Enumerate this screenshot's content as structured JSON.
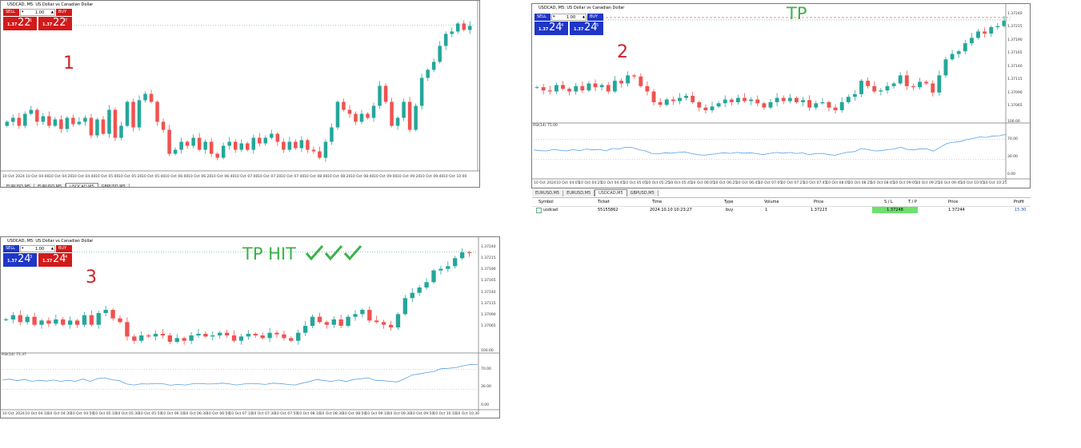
{
  "panels": [
    {
      "title": "USDCAD, M5: US Dollar vs Canadian Dollar",
      "sell_label": "SELL",
      "buy_label": "BUY",
      "lot": "1.00",
      "sell_small": "1.37",
      "sell_big": "22",
      "sell_sup": "1",
      "buy_small": "1.37",
      "buy_big": "22",
      "buy_sup": "7",
      "box_colors": {
        "sell": "#d31a1a",
        "buy": "#d31a1a"
      },
      "annotation": "1",
      "price_labels": [
        "1.37235",
        "1.37220",
        "1.37205",
        "1.37190",
        "1.37175",
        "1.37160",
        "1.37145",
        "1.37130",
        "1.37115",
        "1.37100",
        "1.37085",
        "1.37070",
        "1.37055"
      ],
      "time_labels": [
        "10 Oct 2024",
        "10 Oct 04:00",
        "10 Oct 04:20",
        "10 Oct 04:40",
        "10 Oct 05:00",
        "10 Oct 05:20",
        "10 Oct 05:40",
        "10 Oct 06:00",
        "10 Oct 06:20",
        "10 Oct 06:40",
        "10 Oct 07:00",
        "10 Oct 07:20",
        "10 Oct 07:40",
        "10 Oct 08:00",
        "10 Oct 08:20",
        "10 Oct 08:40",
        "10 Oct 09:00",
        "10 Oct 09:20",
        "10 Oct 09:40",
        "10 Oct 10:00"
      ],
      "tabs": [
        "EURUSD,M5",
        "EURUSD,M5",
        "USDCAD,M5",
        "GBPUSD,M5"
      ]
    },
    {
      "title": "USDCAD, M5: US Dollar vs Canadian Dollar",
      "sell_label": "SELL",
      "buy_label": "BUY",
      "lot": "1.00",
      "sell_small": "1.37",
      "sell_big": "24",
      "sell_sup": "4",
      "buy_small": "1.37",
      "buy_big": "24",
      "buy_sup": "5",
      "box_colors": {
        "sell": "#1f36c7",
        "buy": "#1f36c7"
      },
      "annotation": "2",
      "tp_label": "TP",
      "rsi_label": "RSI(14) 75.00",
      "rsi_levels": [
        "100.00",
        "70.00",
        "30.00",
        "0.00"
      ],
      "price_labels": [
        "1.37240",
        "1.37215",
        "1.37190",
        "1.37165",
        "1.37140",
        "1.37115",
        "1.37090",
        "1.37065"
      ],
      "time_labels": [
        "10 Oct 2024",
        "10 Oct 04:05",
        "10 Oct 04:25",
        "10 Oct 04:45",
        "10 Oct 05:05",
        "10 Oct 05:25",
        "10 Oct 05:45",
        "10 Oct 06:05",
        "10 Oct 06:25",
        "10 Oct 06:45",
        "10 Oct 07:05",
        "10 Oct 07:25",
        "10 Oct 07:45",
        "10 Oct 08:05",
        "10 Oct 08:25",
        "10 Oct 08:45",
        "10 Oct 09:05",
        "10 Oct 09:25",
        "10 Oct 09:45",
        "10 Oct 10:05",
        "10 Oct 10:25"
      ],
      "tabs": [
        "EURUSD,M5",
        "EURUSD,M5",
        "USDCAD,M5",
        "GBPUSD,M5"
      ]
    },
    {
      "title": "USDCAD, M5: US Dollar vs Canadian Dollar",
      "sell_label": "SELL",
      "buy_label": "BUY",
      "lot": "1.00",
      "sell_small": "1.37",
      "sell_big": "24",
      "sell_sup": "3",
      "buy_small": "1.37",
      "buy_big": "24",
      "buy_sup": "4",
      "box_colors": {
        "sell": "#1f36c7",
        "buy": "#d31a1a"
      },
      "annotation": "3",
      "tp_label": "TP HIT",
      "rsi_label": "RSI(14) 75.37",
      "rsi_levels": [
        "100.00",
        "70.00",
        "30.00",
        "0.00"
      ],
      "price_labels": [
        "1.37240",
        "1.37215",
        "1.37190",
        "1.37165",
        "1.37140",
        "1.37115",
        "1.37090",
        "1.37065"
      ],
      "time_labels": [
        "10 Oct 2024",
        "10 Oct 04:10",
        "10 Oct 04:30",
        "10 Oct 04:50",
        "10 Oct 05:10",
        "10 Oct 05:30",
        "10 Oct 05:50",
        "10 Oct 06:10",
        "10 Oct 06:30",
        "10 Oct 06:50",
        "10 Oct 07:10",
        "10 Oct 07:30",
        "10 Oct 07:50",
        "10 Oct 08:10",
        "10 Oct 08:30",
        "10 Oct 08:50",
        "10 Oct 09:10",
        "10 Oct 09:30",
        "10 Oct 09:50",
        "10 Oct 10:10",
        "10 Oct 10:30"
      ],
      "tabs": []
    }
  ],
  "terminal": {
    "headers": [
      "Symbol",
      "Ticket",
      "Time",
      "Type",
      "Volume",
      "Price",
      "S / L",
      "T / P",
      "Price",
      "Profit"
    ],
    "row": [
      "usdcad",
      "55155862",
      "2024.10.10 10:23:27",
      "buy",
      "1",
      "1.37223",
      "",
      "1.37248",
      "1.37244",
      "15.30"
    ]
  },
  "colors": {
    "bull": "#26a69a",
    "bear": "#ef5350",
    "annotation_red": "#d0202a",
    "annotation_green": "#3ab24a",
    "rsi_line": "#5aa0e6",
    "tp_cell": "#6de06d"
  },
  "chart_data": [
    {
      "type": "candlestick",
      "title": "USDCAD, M5: US Dollar vs Canadian Dollar",
      "close": [
        1.37105,
        1.3711,
        1.371,
        1.37115,
        1.3712,
        1.37105,
        1.37112,
        1.371,
        1.37108,
        1.37096,
        1.3711,
        1.37102,
        1.37105,
        1.3711,
        1.37088,
        1.37108,
        1.3709,
        1.3712,
        1.37085,
        1.371,
        1.3713,
        1.37098,
        1.37132,
        1.3714,
        1.3713,
        1.37105,
        1.37095,
        1.37065,
        1.3707,
        1.3708,
        1.37075,
        1.37085,
        1.3707,
        1.3708,
        1.37065,
        1.3706,
        1.37075,
        1.3708,
        1.3707,
        1.37078,
        1.3707,
        1.37085,
        1.37078,
        1.37085,
        1.3709,
        1.3708,
        1.3707,
        1.3708,
        1.37072,
        1.37082,
        1.3707,
        1.37068,
        1.3706,
        1.3708,
        1.37098,
        1.3713,
        1.3712,
        1.37115,
        1.37105,
        1.37115,
        1.3711,
        1.37125,
        1.3715,
        1.3713,
        1.371,
        1.3711,
        1.3713,
        1.37095,
        1.37125,
        1.3716,
        1.3717,
        1.3718,
        1.372,
        1.37215,
        1.37218,
        1.37228,
        1.3722,
        1.37225
      ]
    },
    {
      "type": "candlestick",
      "title": "USDCAD, M5: US Dollar vs Canadian Dollar",
      "close": [
        1.37118,
        1.37112,
        1.3711,
        1.37122,
        1.37115,
        1.3711,
        1.3712,
        1.37112,
        1.37125,
        1.37118,
        1.37122,
        1.3711,
        1.3713,
        1.37125,
        1.3714,
        1.37138,
        1.3712,
        1.3711,
        1.3709,
        1.37085,
        1.37095,
        1.37092,
        1.37098,
        1.37102,
        1.3709,
        1.3708,
        1.37075,
        1.37082,
        1.37088,
        1.37095,
        1.3709,
        1.37098,
        1.37092,
        1.37095,
        1.37088,
        1.3708,
        1.3709,
        1.37098,
        1.37092,
        1.37098,
        1.3709,
        1.37094,
        1.3708,
        1.37088,
        1.3709,
        1.3708,
        1.37075,
        1.3709,
        1.371,
        1.37105,
        1.3713,
        1.3712,
        1.3711,
        1.37112,
        1.3712,
        1.37125,
        1.3714,
        1.3712,
        1.37118,
        1.37128,
        1.37125,
        1.37108,
        1.3714,
        1.3717,
        1.3718,
        1.37185,
        1.372,
        1.3721,
        1.37222,
        1.37218,
        1.3723,
        1.37232,
        1.37242
      ]
    },
    {
      "type": "candlestick",
      "title": "USDCAD, M5: US Dollar vs Canadian Dollar",
      "close": [
        1.3711,
        1.37118,
        1.37105,
        1.37115,
        1.371,
        1.37108,
        1.37102,
        1.3711,
        1.371,
        1.37108,
        1.371,
        1.37118,
        1.371,
        1.37122,
        1.37128,
        1.37112,
        1.37105,
        1.37078,
        1.3707,
        1.3708,
        1.37078,
        1.37083,
        1.3708,
        1.37068,
        1.37075,
        1.3707,
        1.3708,
        1.37083,
        1.37078,
        1.3708,
        1.37085,
        1.3708,
        1.3707,
        1.37078,
        1.37083,
        1.3708,
        1.37075,
        1.37085,
        1.37082,
        1.37075,
        1.3707,
        1.37085,
        1.37098,
        1.37115,
        1.37105,
        1.371,
        1.3711,
        1.37098,
        1.37115,
        1.3712,
        1.37128,
        1.37108,
        1.37105,
        1.371,
        1.37095,
        1.3712,
        1.3715,
        1.3716,
        1.3717,
        1.3718,
        1.37202,
        1.37205,
        1.3721,
        1.37225,
        1.37236,
        1.37235
      ]
    }
  ]
}
